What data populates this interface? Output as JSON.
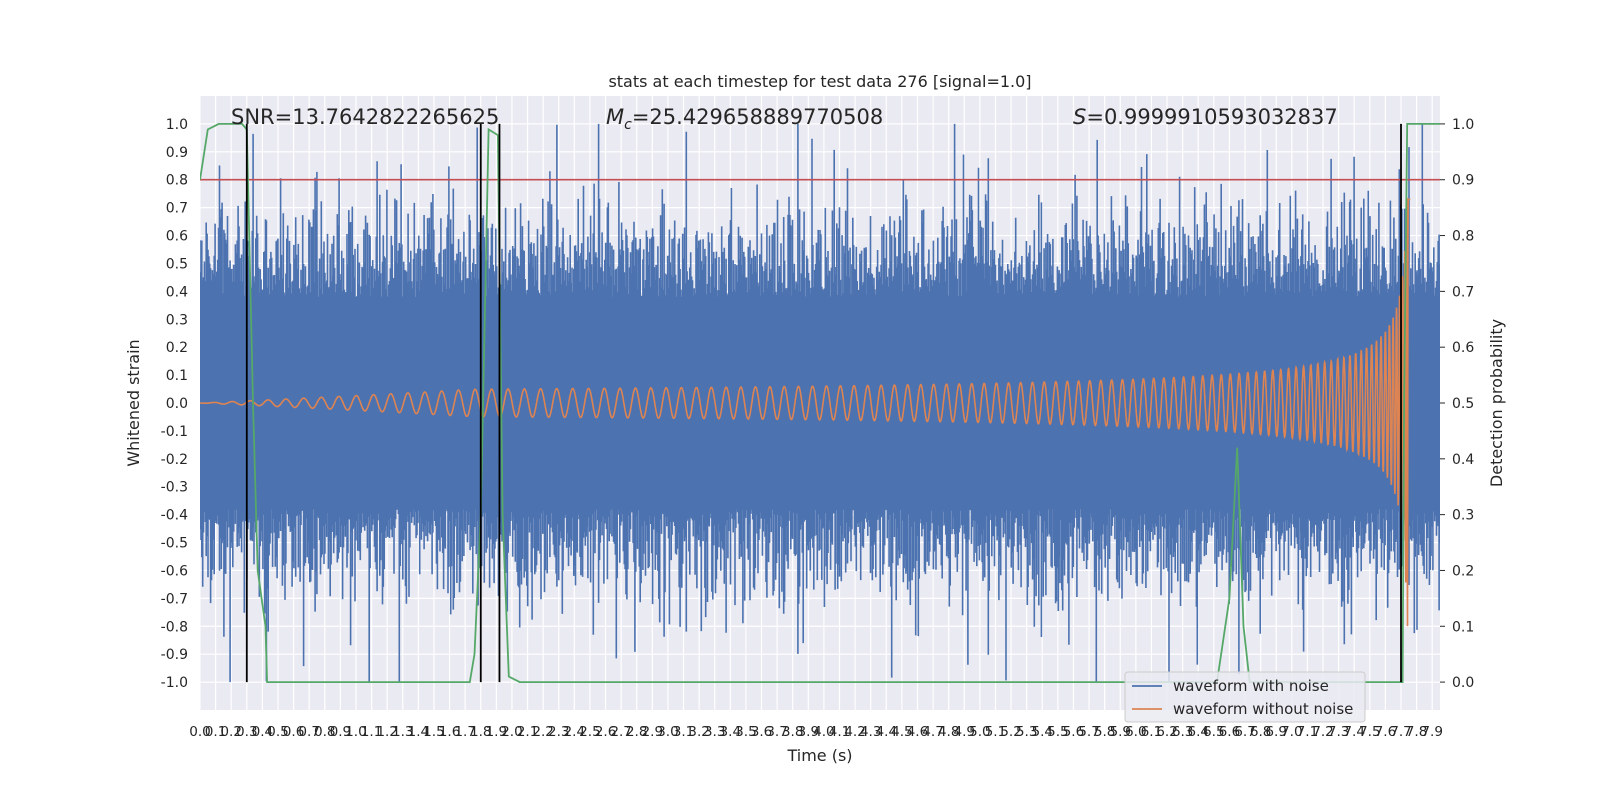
{
  "chart_data": {
    "type": "line",
    "title": "stats at each timestep for test data 276 [signal=1.0]",
    "xlabel": "Time (s)",
    "ylabel": "Whitened strain",
    "y2label": "Detection probability",
    "xlim": [
      0.0,
      7.95
    ],
    "ylim": [
      -1.1,
      1.1
    ],
    "y2lim": [
      -0.05,
      1.05
    ],
    "xticks": [
      "0.0",
      "0.1",
      "0.2",
      "0.3",
      "0.4",
      "0.5",
      "0.6",
      "0.7",
      "0.8",
      "0.9",
      "1.0",
      "1.1",
      "1.2",
      "1.3",
      "1.4",
      "1.5",
      "1.6",
      "1.7",
      "1.8",
      "1.9",
      "2.0",
      "2.1",
      "2.2",
      "2.3",
      "2.4",
      "2.5",
      "2.6",
      "2.7",
      "2.8",
      "2.9",
      "3.0",
      "3.1",
      "3.2",
      "3.3",
      "3.4",
      "3.5",
      "3.6",
      "3.7",
      "3.8",
      "3.9",
      "4.0",
      "4.1",
      "4.2",
      "4.3",
      "4.4",
      "4.5",
      "4.6",
      "4.7",
      "4.8",
      "4.9",
      "5.0",
      "5.1",
      "5.2",
      "5.3",
      "5.4",
      "5.5",
      "5.6",
      "5.7",
      "5.8",
      "5.9",
      "6.0",
      "6.1",
      "6.2",
      "6.3",
      "6.4",
      "6.5",
      "6.6",
      "6.7",
      "6.8",
      "6.9",
      "7.0",
      "7.1",
      "7.2",
      "7.3",
      "7.4",
      "7.5",
      "7.6",
      "7.7",
      "7.8",
      "7.9"
    ],
    "yticks": [
      "1.0",
      "0.9",
      "0.8",
      "0.7",
      "0.6",
      "0.5",
      "0.4",
      "0.3",
      "0.2",
      "0.1",
      "0.0",
      "-0.1",
      "-0.2",
      "-0.3",
      "-0.4",
      "-0.5",
      "-0.6",
      "-0.7",
      "-0.8",
      "-0.9",
      "-1.0"
    ],
    "y2ticks": [
      "1.0",
      "0.9",
      "0.8",
      "0.7",
      "0.6",
      "0.5",
      "0.4",
      "0.3",
      "0.2",
      "0.1",
      "0.0"
    ],
    "stats": {
      "snr": "SNR=13.7642822265625",
      "mc_symbol": "M",
      "mc_sub": "c",
      "mc_value": "=25.429658889770508",
      "s_symbol": "S",
      "s_value": "=0.9999910593032837"
    },
    "threshold_line": {
      "y": 0.8,
      "color": "#c44e52"
    },
    "event_markers_x": [
      0.3,
      1.8,
      1.92,
      7.7
    ],
    "series": [
      {
        "name": "waveform with noise",
        "color": "#4c72b0",
        "noise_envelope": 0.38,
        "y_max": 1.0,
        "y_min": -1.0
      },
      {
        "name": "waveform without noise",
        "color": "#dd8452",
        "merger_time": 7.75,
        "peak_amplitude": 0.8
      },
      {
        "name": "detection probability",
        "color": "#55a868",
        "points": [
          [
            0.0,
            0.9
          ],
          [
            0.05,
            0.99
          ],
          [
            0.12,
            1.0
          ],
          [
            0.27,
            1.0
          ],
          [
            0.3,
            0.99
          ],
          [
            0.34,
            0.5
          ],
          [
            0.37,
            0.2
          ],
          [
            0.42,
            0.1
          ],
          [
            0.43,
            0.0
          ],
          [
            1.73,
            0.0
          ],
          [
            1.76,
            0.05
          ],
          [
            1.8,
            0.3
          ],
          [
            1.85,
            0.99
          ],
          [
            1.91,
            0.98
          ],
          [
            1.94,
            0.3
          ],
          [
            1.98,
            0.01
          ],
          [
            2.05,
            0.0
          ],
          [
            6.52,
            0.0
          ],
          [
            6.6,
            0.15
          ],
          [
            6.65,
            0.42
          ],
          [
            6.69,
            0.1
          ],
          [
            6.73,
            0.0
          ],
          [
            7.71,
            0.0
          ],
          [
            7.72,
            0.5
          ],
          [
            7.74,
            1.0
          ],
          [
            7.95,
            1.0
          ]
        ]
      }
    ],
    "legend": {
      "position": "lower-right",
      "entries": [
        "waveform with noise",
        "waveform without noise"
      ]
    },
    "grid": true
  }
}
